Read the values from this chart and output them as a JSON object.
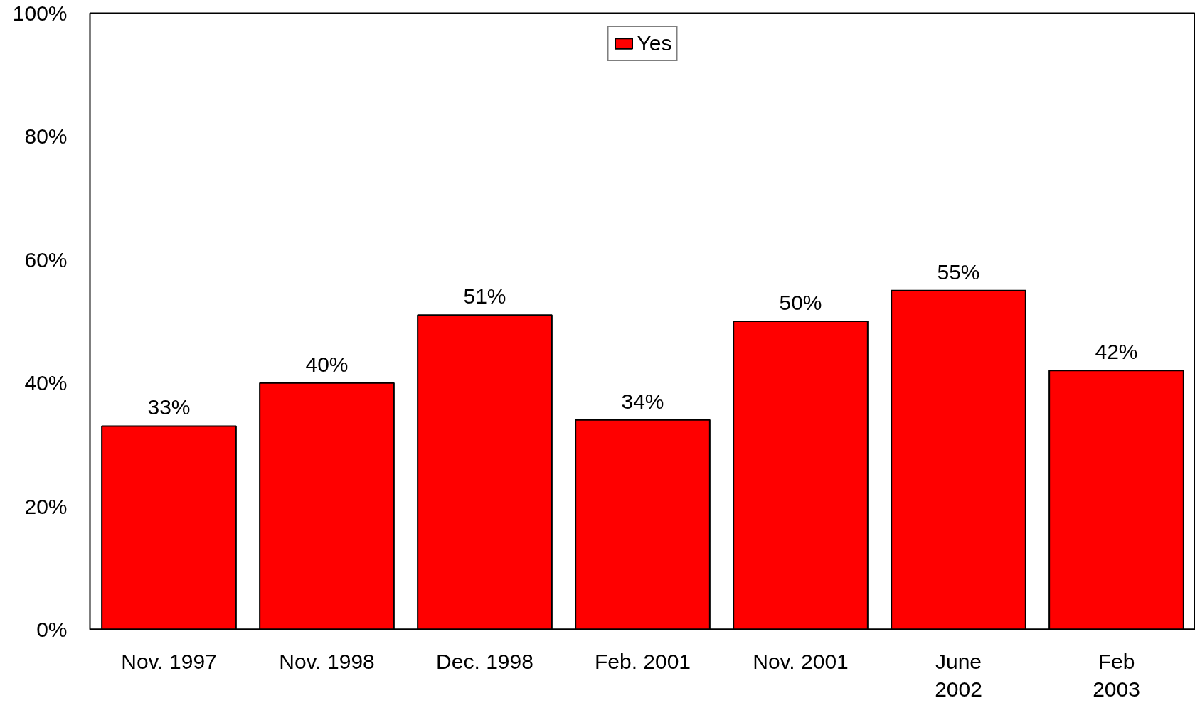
{
  "chart_data": {
    "type": "bar",
    "categories": [
      "Nov. 1997",
      "Nov. 1998",
      "Dec. 1998",
      "Feb. 2001",
      "Nov. 2001",
      "June\n2002",
      "Feb\n2003"
    ],
    "series": [
      {
        "name": "Yes",
        "color": "#ff0000",
        "values": [
          33,
          40,
          51,
          34,
          50,
          55,
          42
        ],
        "value_labels": [
          "33%",
          "40%",
          "51%",
          "34%",
          "50%",
          "55%",
          "42%"
        ]
      }
    ],
    "ylim": [
      0,
      100
    ],
    "yticks": [
      {
        "value": 0,
        "label": "0%"
      },
      {
        "value": 20,
        "label": "20%"
      },
      {
        "value": 40,
        "label": "40%"
      },
      {
        "value": 60,
        "label": "60%"
      },
      {
        "value": 80,
        "label": "80%"
      },
      {
        "value": 100,
        "label": "100%"
      }
    ],
    "grid": false,
    "legend": "top"
  }
}
